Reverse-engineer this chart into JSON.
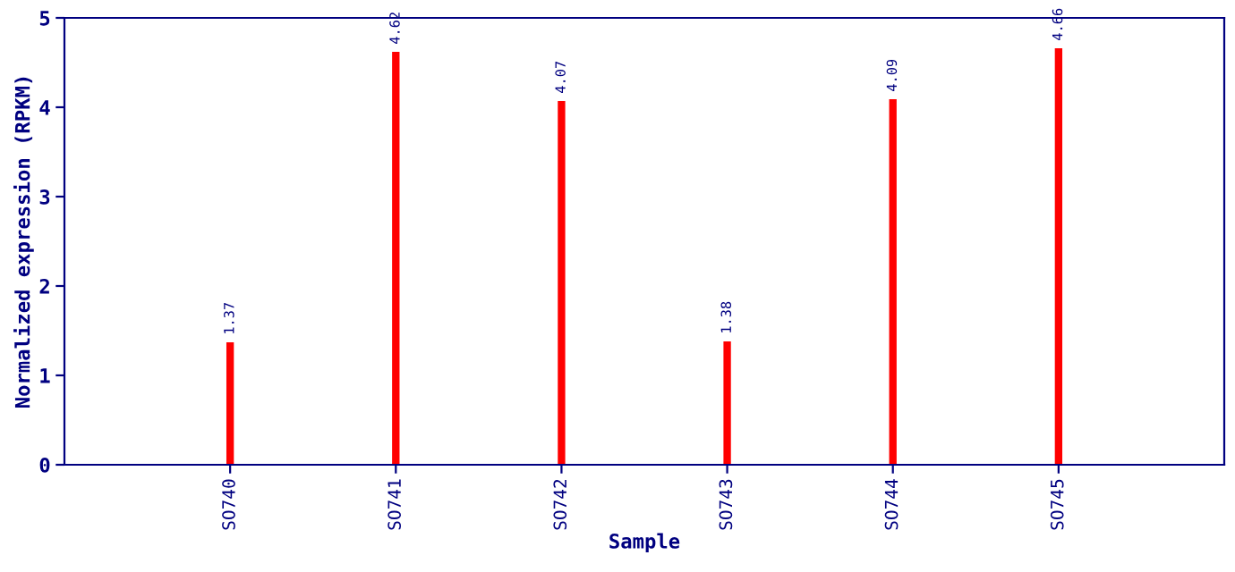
{
  "chart_data": {
    "type": "bar",
    "xlabel": "Sample",
    "ylabel": "Normalized expression (RPKM)",
    "categories": [
      "SO740",
      "SO741",
      "SO742",
      "SO743",
      "SO744",
      "SO745"
    ],
    "values": [
      1.37,
      4.62,
      4.07,
      1.38,
      4.09,
      4.66
    ],
    "color": "#ff0000",
    "ylim": [
      0,
      5
    ],
    "yticks": [
      0,
      1,
      2,
      3,
      4,
      5
    ],
    "grid": false,
    "data_labels": true
  }
}
